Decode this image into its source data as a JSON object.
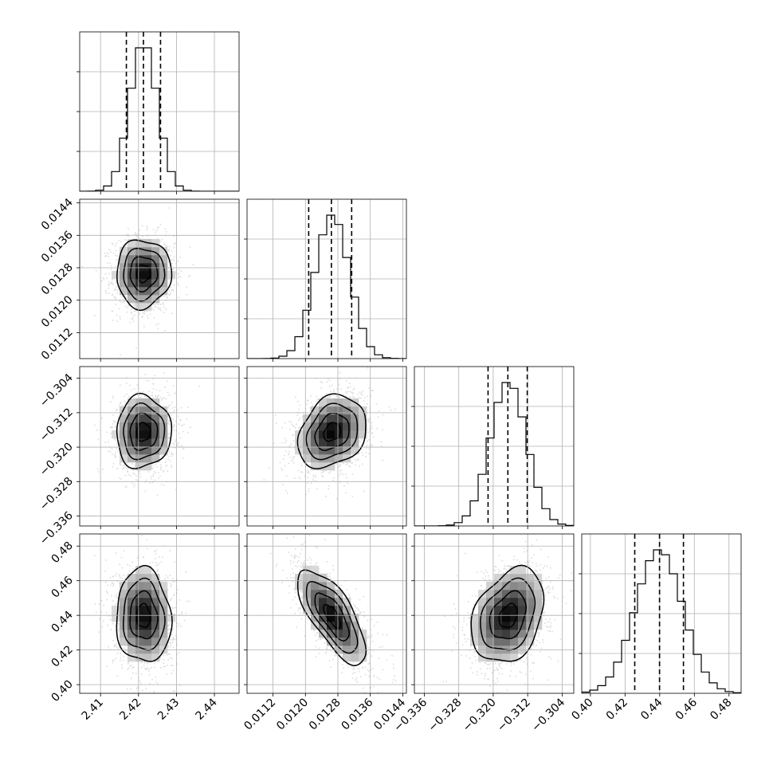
{
  "chart_data": {
    "type": "corner",
    "parameters": [
      {
        "mean": 2.4213,
        "sd": 0.0036,
        "range": [
          2.4045,
          2.4465
        ],
        "ticks": [
          "2.41",
          "2.42",
          "2.43",
          "2.44"
        ],
        "tick_values": [
          2.41,
          2.42,
          2.43,
          2.44
        ],
        "quantiles": [
          2.4168,
          2.4213,
          2.4258
        ]
      },
      {
        "mean": 0.01266,
        "sd": 0.00042,
        "range": [
          0.01056,
          0.01449
        ],
        "ticks": [
          "0.0112",
          "0.0120",
          "0.0128",
          "0.0136",
          "0.0144"
        ],
        "tick_values": [
          0.0112,
          0.012,
          0.0128,
          0.0136,
          0.0144
        ],
        "quantiles": [
          0.01208,
          0.01264,
          0.01314
        ]
      },
      {
        "mean": -0.3165,
        "sd": 0.0042,
        "range": [
          -0.3383,
          -0.3013
        ],
        "ticks": [
          "−0.336",
          "−0.328",
          "−0.320",
          "−0.312",
          "−0.304"
        ],
        "tick_values": [
          -0.336,
          -0.328,
          -0.32,
          -0.312,
          -0.304
        ],
        "quantiles": [
          -0.3212,
          -0.3166,
          -0.3121
        ]
      },
      {
        "mean": 0.4396,
        "sd": 0.0136,
        "range": [
          0.395,
          0.487
        ],
        "ticks": [
          "0.40",
          "0.42",
          "0.44",
          "0.46",
          "0.48"
        ],
        "tick_values": [
          0.4,
          0.42,
          0.44,
          0.46,
          0.48
        ],
        "quantiles": [
          0.4256,
          0.4399,
          0.4537
        ]
      }
    ],
    "correlations": [
      [
        1,
        0.02,
        0.03,
        -0.05
      ],
      [
        0.02,
        1,
        0.25,
        -0.72
      ],
      [
        0.03,
        0.25,
        1,
        0.3
      ],
      [
        -0.05,
        -0.72,
        0.3,
        1
      ]
    ],
    "hist_bins": 20,
    "contour_levels": [
      0.5,
      1.0,
      1.5,
      2.0
    ],
    "grid": true,
    "title": "",
    "xlabel": "",
    "ylabel": ""
  }
}
